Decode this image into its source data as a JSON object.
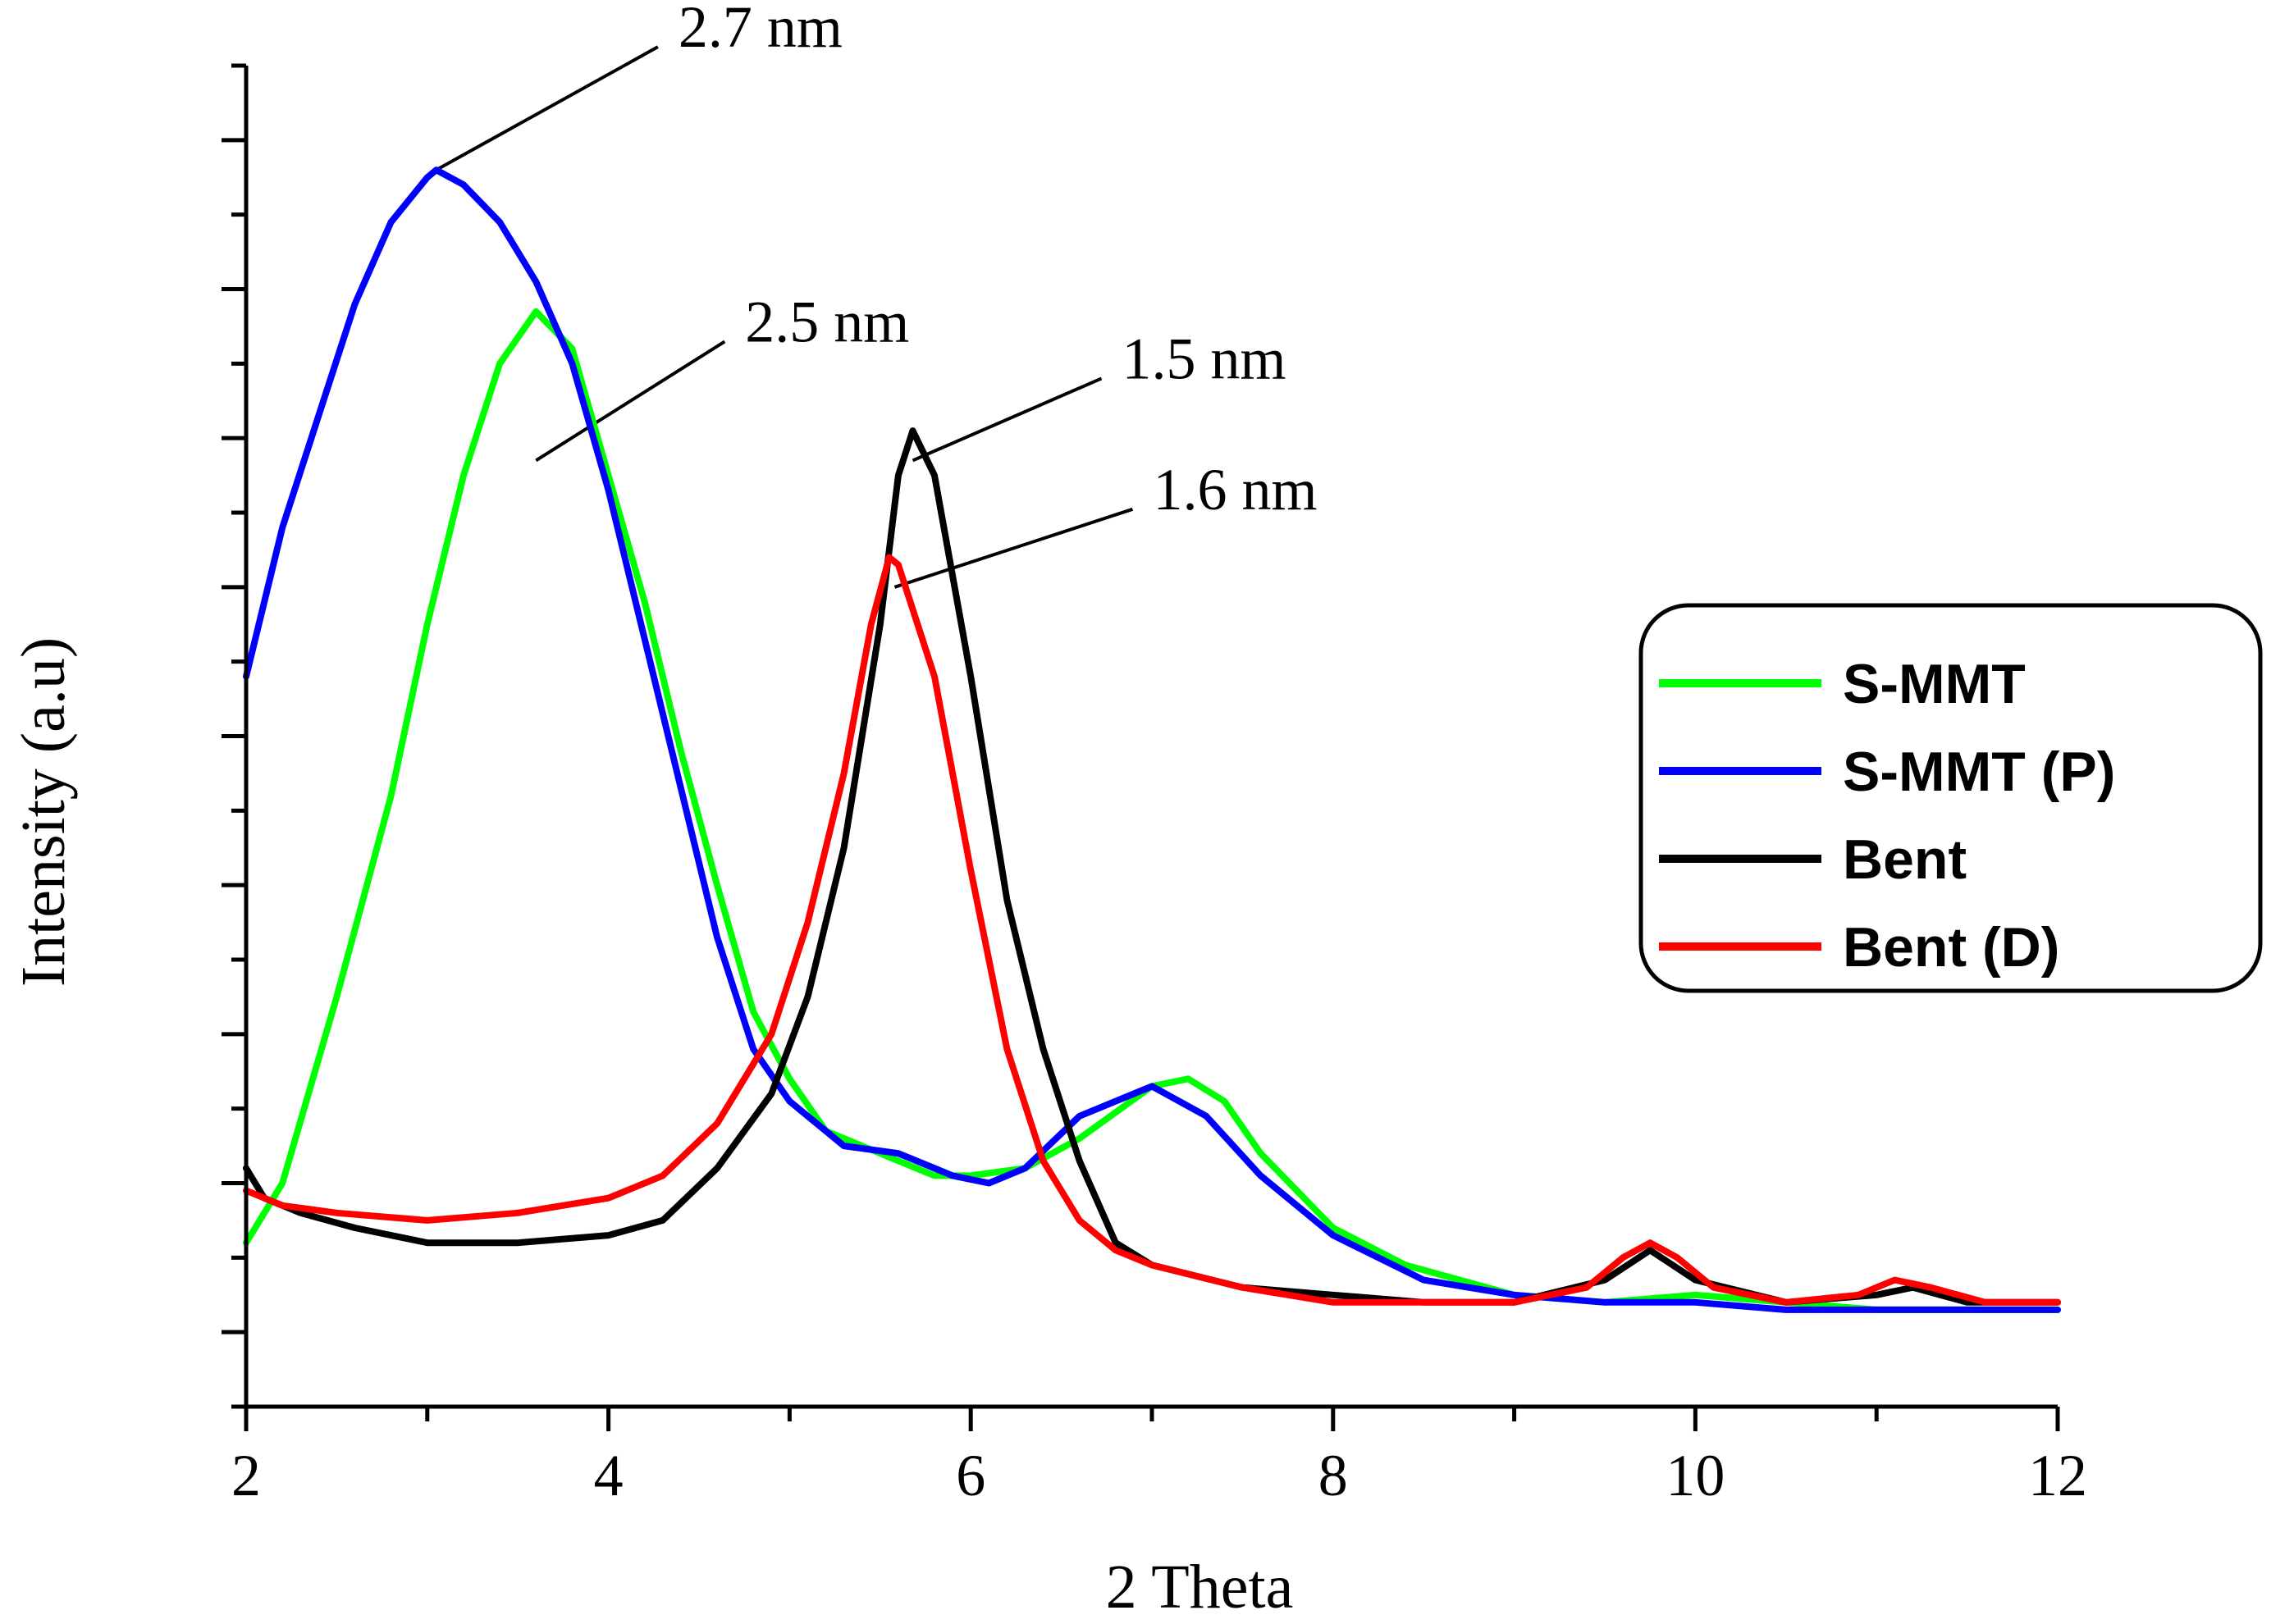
{
  "chart_data": {
    "type": "line",
    "title": "",
    "xlabel": "2 Theta",
    "ylabel": "Intensity (a.u)",
    "xlim": [
      2,
      12
    ],
    "ylim": [
      0,
      180
    ],
    "x_ticks": [
      2,
      4,
      6,
      8,
      10,
      12
    ],
    "x_tick_labels": [
      "2",
      "4",
      "6",
      "8",
      "10",
      "12"
    ],
    "y_tick_count": 18,
    "grid": false,
    "legend_position": "right",
    "series": [
      {
        "name": "S-MMT",
        "color": "#00ff00",
        "points": [
          [
            2.0,
            22
          ],
          [
            2.2,
            30
          ],
          [
            2.5,
            55
          ],
          [
            2.8,
            82
          ],
          [
            3.0,
            105
          ],
          [
            3.2,
            125
          ],
          [
            3.4,
            140
          ],
          [
            3.6,
            147
          ],
          [
            3.8,
            142
          ],
          [
            4.0,
            125
          ],
          [
            4.2,
            108
          ],
          [
            4.4,
            88
          ],
          [
            4.6,
            70
          ],
          [
            4.8,
            53
          ],
          [
            5.0,
            44
          ],
          [
            5.2,
            37
          ],
          [
            5.5,
            34
          ],
          [
            5.8,
            31
          ],
          [
            6.0,
            31
          ],
          [
            6.3,
            32
          ],
          [
            6.6,
            36
          ],
          [
            7.0,
            43
          ],
          [
            7.2,
            44
          ],
          [
            7.4,
            41
          ],
          [
            7.6,
            34
          ],
          [
            8.0,
            24
          ],
          [
            8.4,
            19
          ],
          [
            9.0,
            15
          ],
          [
            9.5,
            14
          ],
          [
            10.0,
            15
          ],
          [
            10.5,
            14
          ],
          [
            11.0,
            13
          ],
          [
            12.0,
            13
          ]
        ]
      },
      {
        "name": "S-MMT (P)",
        "color": "#0000ff",
        "points": [
          [
            2.0,
            98
          ],
          [
            2.2,
            118
          ],
          [
            2.4,
            133
          ],
          [
            2.6,
            148
          ],
          [
            2.8,
            159
          ],
          [
            3.0,
            165
          ],
          [
            3.05,
            166
          ],
          [
            3.2,
            164
          ],
          [
            3.4,
            159
          ],
          [
            3.6,
            151
          ],
          [
            3.8,
            140
          ],
          [
            4.0,
            123
          ],
          [
            4.2,
            103
          ],
          [
            4.4,
            83
          ],
          [
            4.6,
            63
          ],
          [
            4.8,
            48
          ],
          [
            5.0,
            41
          ],
          [
            5.3,
            35
          ],
          [
            5.6,
            34
          ],
          [
            5.9,
            31
          ],
          [
            6.1,
            30
          ],
          [
            6.3,
            32
          ],
          [
            6.6,
            39
          ],
          [
            6.9,
            42
          ],
          [
            7.0,
            43
          ],
          [
            7.3,
            39
          ],
          [
            7.6,
            31
          ],
          [
            8.0,
            23
          ],
          [
            8.5,
            17
          ],
          [
            9.0,
            15
          ],
          [
            9.5,
            14
          ],
          [
            10.0,
            14
          ],
          [
            10.5,
            13
          ],
          [
            11.0,
            13
          ],
          [
            12.0,
            13
          ]
        ]
      },
      {
        "name": "Bent",
        "color": "#000000",
        "points": [
          [
            2.0,
            32
          ],
          [
            2.1,
            28
          ],
          [
            2.3,
            26
          ],
          [
            2.6,
            24
          ],
          [
            3.0,
            22
          ],
          [
            3.5,
            22
          ],
          [
            4.0,
            23
          ],
          [
            4.3,
            25
          ],
          [
            4.6,
            32
          ],
          [
            4.9,
            42
          ],
          [
            5.1,
            55
          ],
          [
            5.3,
            75
          ],
          [
            5.5,
            105
          ],
          [
            5.6,
            125
          ],
          [
            5.68,
            131
          ],
          [
            5.8,
            125
          ],
          [
            6.0,
            98
          ],
          [
            6.2,
            68
          ],
          [
            6.4,
            48
          ],
          [
            6.6,
            33
          ],
          [
            6.8,
            22
          ],
          [
            7.0,
            19
          ],
          [
            7.5,
            16
          ],
          [
            8.0,
            15
          ],
          [
            8.5,
            14
          ],
          [
            9.0,
            14
          ],
          [
            9.5,
            17
          ],
          [
            9.75,
            21
          ],
          [
            10.0,
            17
          ],
          [
            10.5,
            14
          ],
          [
            11.0,
            15
          ],
          [
            11.2,
            16
          ],
          [
            11.5,
            14
          ],
          [
            12.0,
            14
          ]
        ]
      },
      {
        "name": "Bent (D)",
        "color": "#ff0000",
        "points": [
          [
            2.0,
            29
          ],
          [
            2.2,
            27
          ],
          [
            2.5,
            26
          ],
          [
            3.0,
            25
          ],
          [
            3.5,
            26
          ],
          [
            4.0,
            28
          ],
          [
            4.3,
            31
          ],
          [
            4.6,
            38
          ],
          [
            4.9,
            50
          ],
          [
            5.1,
            65
          ],
          [
            5.3,
            85
          ],
          [
            5.45,
            105
          ],
          [
            5.55,
            114
          ],
          [
            5.6,
            113
          ],
          [
            5.8,
            98
          ],
          [
            6.0,
            72
          ],
          [
            6.2,
            48
          ],
          [
            6.4,
            33
          ],
          [
            6.6,
            25
          ],
          [
            6.8,
            21
          ],
          [
            7.0,
            19
          ],
          [
            7.5,
            16
          ],
          [
            8.0,
            14
          ],
          [
            8.5,
            14
          ],
          [
            9.0,
            14
          ],
          [
            9.4,
            16
          ],
          [
            9.6,
            20
          ],
          [
            9.75,
            22
          ],
          [
            9.9,
            20
          ],
          [
            10.1,
            16
          ],
          [
            10.5,
            14
          ],
          [
            10.9,
            15
          ],
          [
            11.1,
            17
          ],
          [
            11.3,
            16
          ],
          [
            11.6,
            14
          ],
          [
            12.0,
            14
          ]
        ]
      }
    ],
    "annotations": [
      {
        "text": "2.7 nm",
        "series": "S-MMT (P)",
        "x": 3.05,
        "y": 166
      },
      {
        "text": "2.5 nm",
        "series": "S-MMT",
        "x": 3.6,
        "y": 127
      },
      {
        "text": "1.5 nm",
        "series": "Bent",
        "x": 5.68,
        "y": 127
      },
      {
        "text": "1.6 nm",
        "series": "Bent (D)",
        "x": 5.58,
        "y": 110
      }
    ]
  }
}
